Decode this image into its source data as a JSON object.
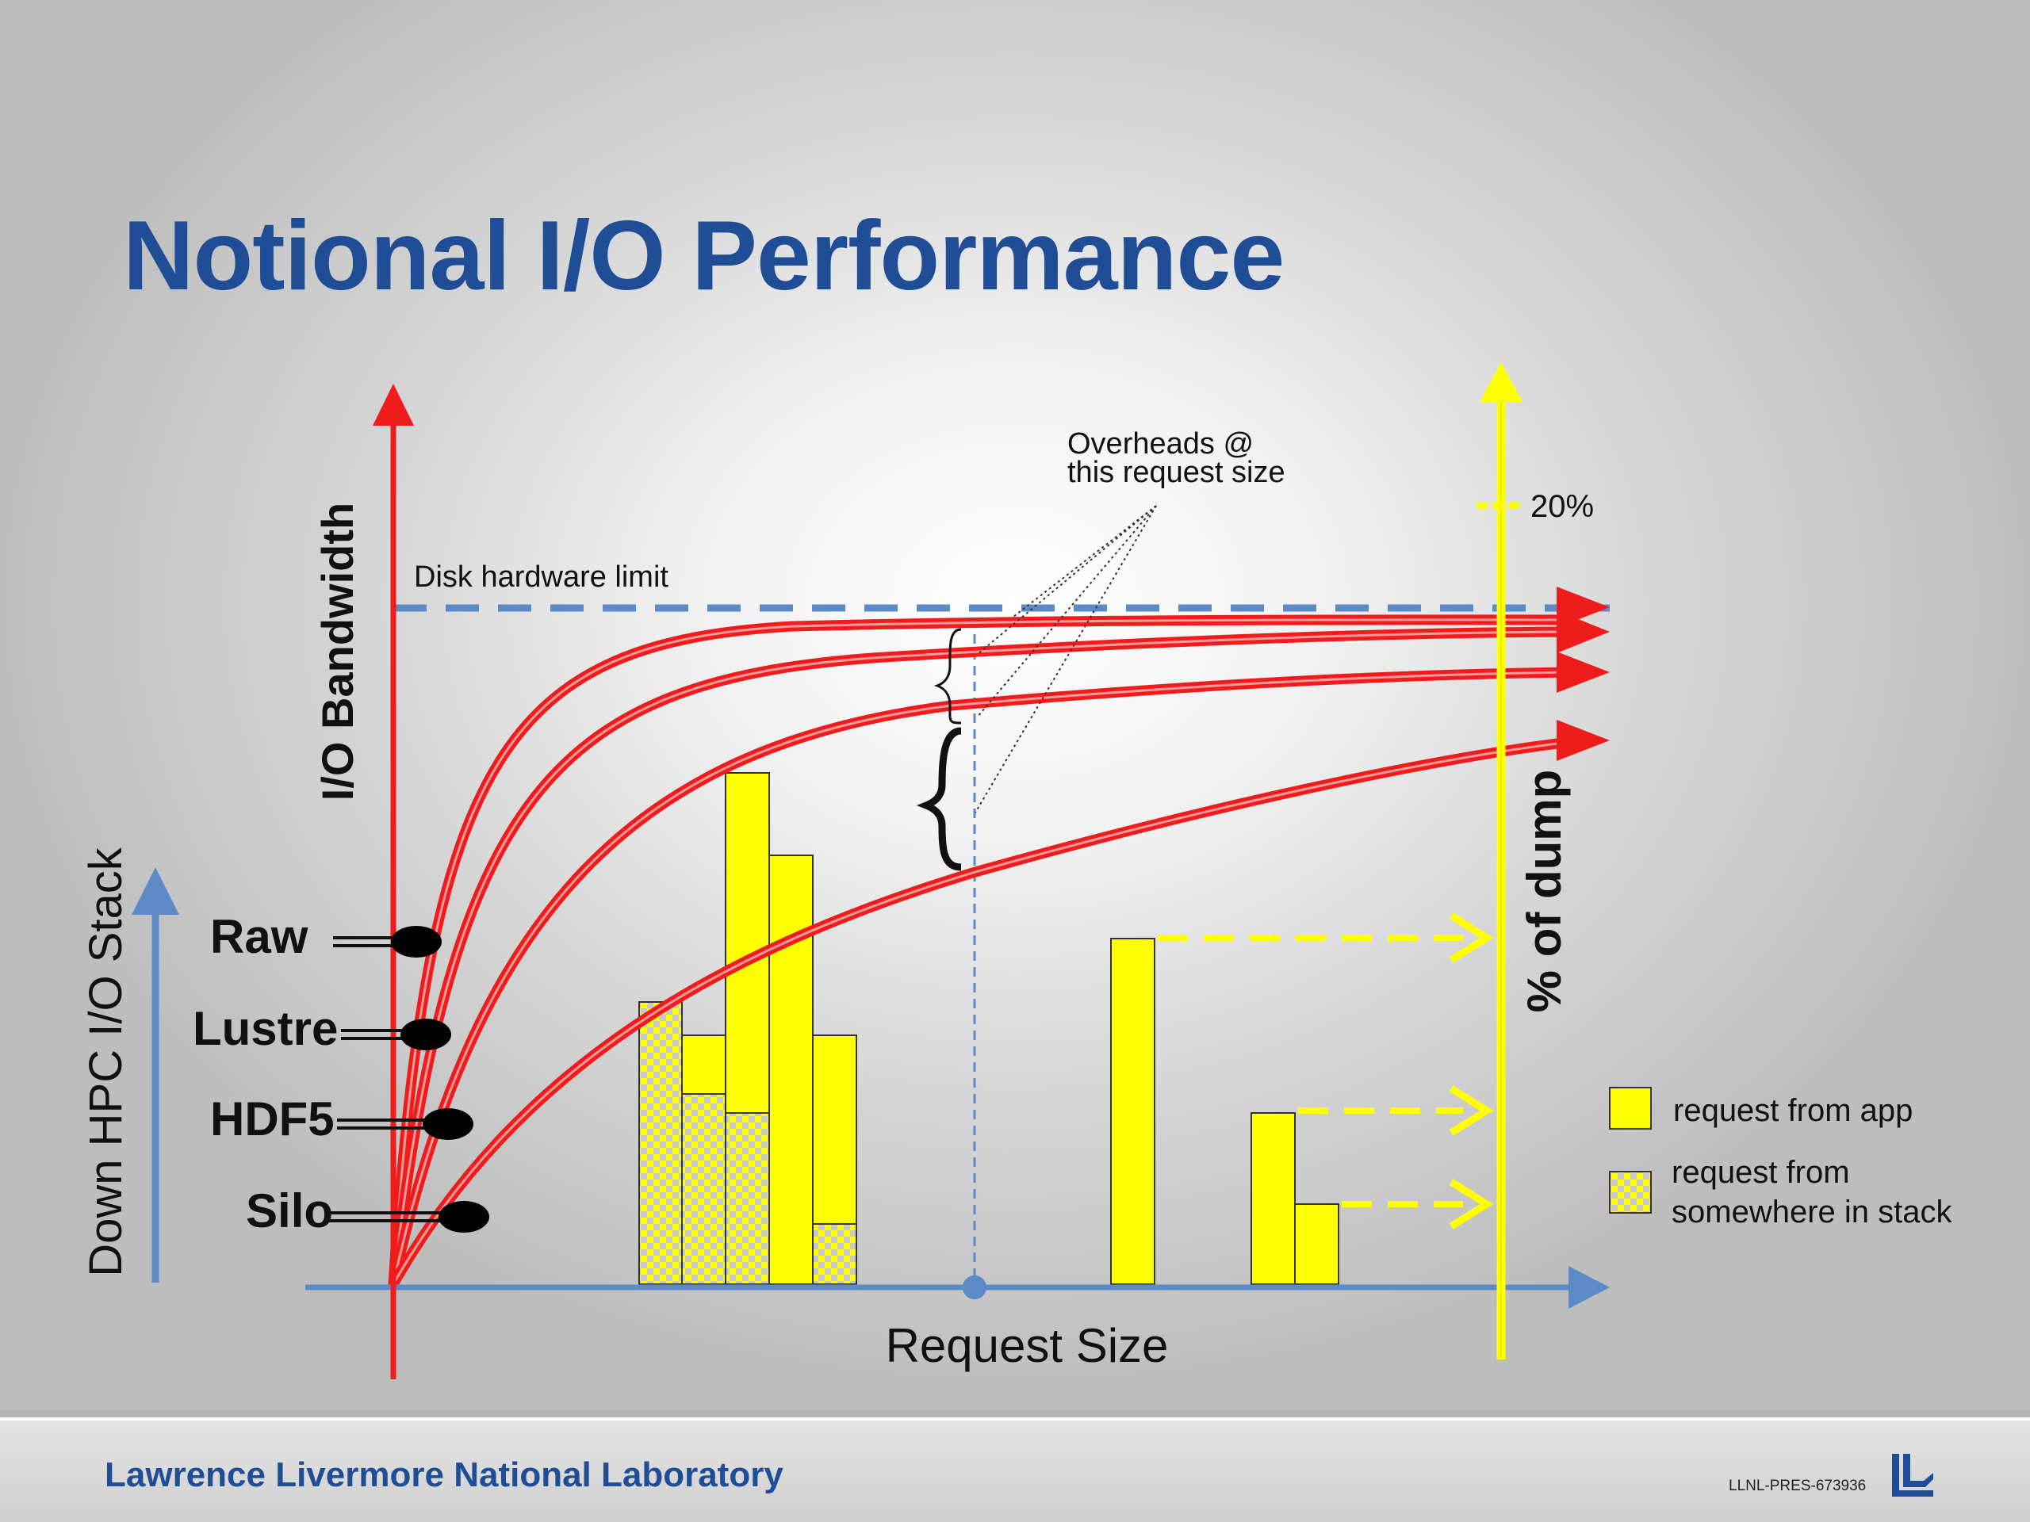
{
  "slide": {
    "title": "Notional I/O Performance"
  },
  "diagram": {
    "y_axis_label": "I/O Bandwidth",
    "x_axis_label": "Request Size",
    "secondary_axis_label": "% of dump",
    "secondary_tick_label": "20%",
    "stack_axis_label": "Down HPC I/O Stack",
    "hardware_limit_label": "Disk hardware limit",
    "overheads_annotation": [
      "Overheads @",
      "this request size"
    ],
    "stack_layers": [
      {
        "name": "Raw"
      },
      {
        "name": "Lustre"
      },
      {
        "name": "HDF5"
      },
      {
        "name": "Silo"
      }
    ],
    "legend": {
      "app_request": "request from app",
      "stack_request_lines": [
        "request from",
        "somewhere in stack"
      ]
    },
    "colors": {
      "title_blue": "#1f4e96",
      "axis_red": "#ee1c1c",
      "axis_blue": "#5b8ac6",
      "bar_yellow": "#ffff00",
      "pattern_gray": "#c8c8c8",
      "curve_red": "#ee1c1c"
    }
  },
  "footer": {
    "lab_name": "Lawrence Livermore National Laboratory",
    "doc_id": "LLNL-PRES-673936"
  }
}
